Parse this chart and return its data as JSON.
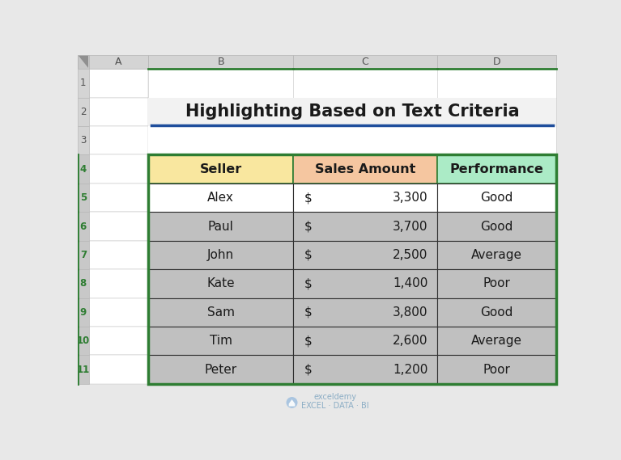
{
  "title": "Highlighting Based on Text Criteria",
  "col_headers": [
    "Seller",
    "Sales Amount",
    "Performance"
  ],
  "header_bg_colors": [
    "#F9E79F",
    "#F5C6A0",
    "#ABEBC6"
  ],
  "rows": [
    [
      "Alex",
      "3,300",
      "Good"
    ],
    [
      "Paul",
      "3,700",
      "Good"
    ],
    [
      "John",
      "2,500",
      "Average"
    ],
    [
      "Kate",
      "1,400",
      "Poor"
    ],
    [
      "Sam",
      "3,800",
      "Good"
    ],
    [
      "Tim",
      "2,600",
      "Average"
    ],
    [
      "Peter",
      "1,200",
      "Poor"
    ]
  ],
  "row_bg_colors": [
    "#FFFFFF",
    "#C0C0C0",
    "#C0C0C0",
    "#C0C0C0",
    "#C0C0C0",
    "#C0C0C0",
    "#C0C0C0"
  ],
  "fig_bg": "#E8E8E8",
  "cell_bg": "#FFFFFF",
  "title_fontsize": 15,
  "header_fontsize": 11.5,
  "data_fontsize": 11,
  "blue_underline_color": "#1F4E9C",
  "row_border_color": "#404040",
  "table_outer_color": "#2E7D32",
  "excel_header_color": "#D4D4D4",
  "excel_row_num_color": "#D4D4D4",
  "excel_selected_row_color": "#C8C8C8",
  "excel_border_color": "#B8B8B8",
  "row_num_selected_rows": [
    4,
    5,
    6,
    7,
    8,
    9,
    10,
    11
  ],
  "n_excel_rows": 11,
  "watermark_text": "exceldemy\nEXCEL · DATA · BI",
  "watermark_color": "#9FBFDF"
}
